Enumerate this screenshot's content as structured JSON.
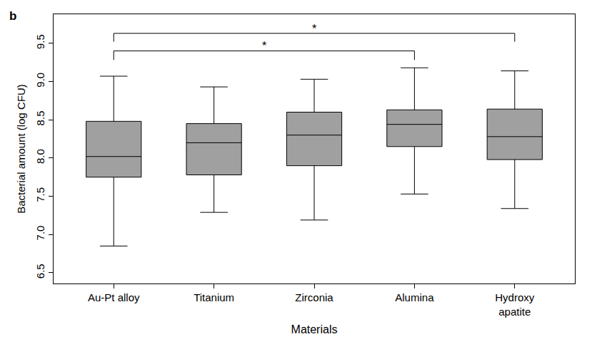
{
  "chart_data": {
    "type": "box",
    "panel_label": "b",
    "x_label": "Materials",
    "y_label": "Bacterial amount (log CFU)",
    "categories": [
      "Au-Pt alloy",
      "Titanium",
      "Zirconia",
      "Alumina",
      "Hydroxy\napatite"
    ],
    "color": "#a0a0a0",
    "lower_whisker": [
      6.85,
      7.29,
      7.19,
      7.53,
      7.34
    ],
    "q1": [
      7.75,
      7.78,
      7.9,
      8.15,
      7.98
    ],
    "median": [
      8.02,
      8.2,
      8.3,
      8.44,
      8.28
    ],
    "q3": [
      8.48,
      8.45,
      8.6,
      8.63,
      8.64
    ],
    "upper_whisker": [
      9.07,
      8.93,
      9.03,
      9.18,
      9.14
    ],
    "ylim": [
      6.36,
      9.88
    ],
    "yticks": [
      6.5,
      {
        "value": 7,
        "label": "7.0"
      },
      7.5,
      {
        "value": 8,
        "label": "8.0"
      },
      8.5,
      {
        "value": 9,
        "label": "9.0"
      },
      9.5
    ],
    "grid": false,
    "comparisons": [
      {
        "from": "Au-Pt alloy",
        "to": "Alumina",
        "label": "*"
      },
      {
        "from": "Au-Pt alloy",
        "to": "Hydroxy\napatite",
        "label": "*"
      }
    ]
  }
}
